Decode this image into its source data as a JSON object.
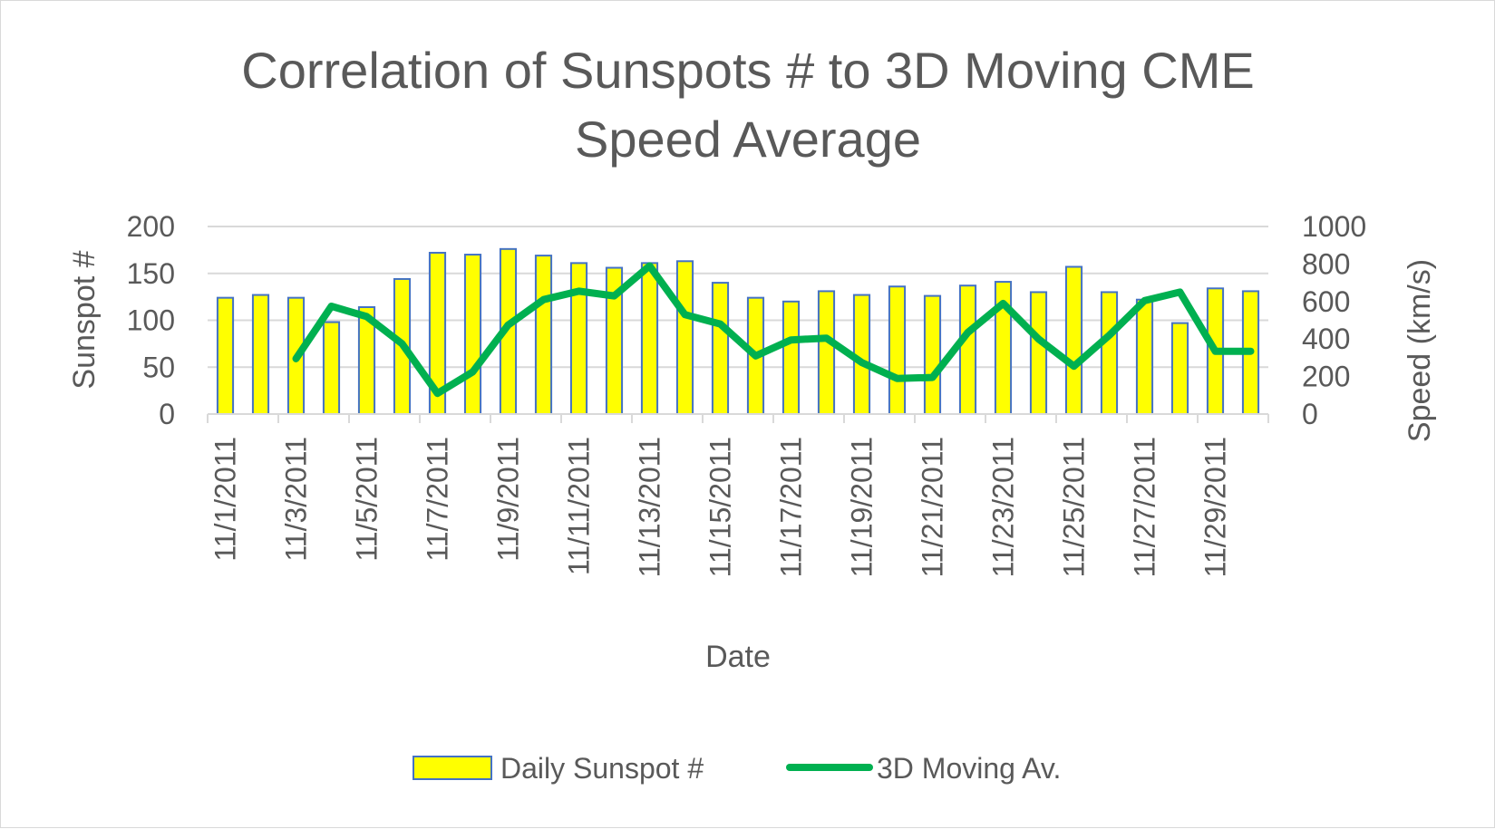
{
  "chart_data": {
    "type": "bar",
    "title_lines": [
      "Correlation of Sunspots # to 3D Moving CME",
      "Speed Average"
    ],
    "xlabel": "Date",
    "ylabel": "Sunspot #",
    "y2label": "Speed (km/s)",
    "ylim": [
      0,
      200
    ],
    "y2lim": [
      0,
      1000
    ],
    "y_ticks": [
      "0",
      "50",
      "100",
      "150",
      "200"
    ],
    "y2_ticks": [
      "0",
      "200",
      "400",
      "600",
      "800",
      "1000"
    ],
    "grid": true,
    "legend_position": "bottom",
    "categories": [
      "11/1/2011",
      "11/2/2011",
      "11/3/2011",
      "11/4/2011",
      "11/5/2011",
      "11/6/2011",
      "11/7/2011",
      "11/8/2011",
      "11/9/2011",
      "11/10/2011",
      "11/11/2011",
      "11/12/2011",
      "11/13/2011",
      "11/14/2011",
      "11/15/2011",
      "11/16/2011",
      "11/17/2011",
      "11/18/2011",
      "11/19/2011",
      "11/20/2011",
      "11/21/2011",
      "11/22/2011",
      "11/23/2011",
      "11/24/2011",
      "11/25/2011",
      "11/26/2011",
      "11/27/2011",
      "11/28/2011",
      "11/29/2011",
      "11/30/2011"
    ],
    "x_tick_labels": [
      "11/1/2011",
      "11/3/2011",
      "11/5/2011",
      "11/7/2011",
      "11/9/2011",
      "11/11/2011",
      "11/13/2011",
      "11/15/2011",
      "11/17/2011",
      "11/19/2011",
      "11/21/2011",
      "11/23/2011",
      "11/25/2011",
      "11/27/2011",
      "11/29/2011"
    ],
    "series": [
      {
        "name": "Daily Sunspot #",
        "type": "bar",
        "axis": "left",
        "color": "#ffff00",
        "edge_color": "#4472c4",
        "values": [
          124,
          127,
          124,
          98,
          114,
          144,
          172,
          170,
          176,
          169,
          161,
          156,
          161,
          163,
          140,
          124,
          120,
          131,
          127,
          136,
          126,
          137,
          141,
          130,
          157,
          130,
          122,
          97,
          134,
          131
        ]
      },
      {
        "name": "3D Moving Av.",
        "type": "line",
        "axis": "right",
        "color": "#00b050",
        "values": [
          null,
          null,
          295,
          575,
          520,
          375,
          110,
          225,
          475,
          610,
          655,
          630,
          790,
          530,
          480,
          310,
          395,
          405,
          275,
          190,
          195,
          435,
          590,
          400,
          255,
          420,
          605,
          650,
          335,
          335
        ]
      }
    ]
  }
}
